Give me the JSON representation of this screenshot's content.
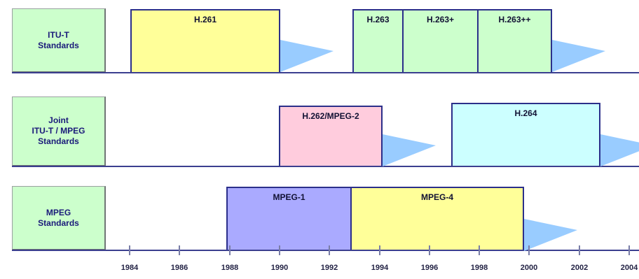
{
  "rows": [
    {
      "label": "ITU-T\nStandards"
    },
    {
      "label": "Joint\nITU-T / MPEG\nStandards"
    },
    {
      "label": "MPEG\nStandards"
    }
  ],
  "standards": [
    {
      "name": "H.261",
      "start": 1984,
      "end": 1990,
      "color": "#ffff99"
    },
    {
      "name": "H.263",
      "start": 1993,
      "end": 1995,
      "color": "#ccffcc"
    },
    {
      "name": "H.263+",
      "start": 1995,
      "end": 1997,
      "color": "#ccffcc"
    },
    {
      "name": "H.263++",
      "start": 1997,
      "end": 2000,
      "color": "#ccffcc"
    },
    {
      "name": "H.262/MPEG-2",
      "start": 1990,
      "end": 1994,
      "color": "#ffccdd"
    },
    {
      "name": "H.264",
      "start": 1997,
      "end": 2003,
      "color": "#ccffff"
    },
    {
      "name": "MPEG-1",
      "start": 1988,
      "end": 1993,
      "color": "#aaaaff"
    },
    {
      "name": "MPEG-4",
      "start": 1993,
      "end": 2000,
      "color": "#ffff99"
    }
  ],
  "years": [
    "1984",
    "1986",
    "1988",
    "1990",
    "1992",
    "1994",
    "1996",
    "1998",
    "2000",
    "2002",
    "2004"
  ],
  "colors": {
    "shade": "#99ccff",
    "baseline": "#3b3f8f",
    "border": "#2b2f8a"
  }
}
